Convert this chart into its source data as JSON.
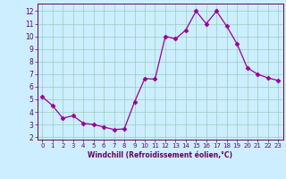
{
  "x": [
    0,
    1,
    2,
    3,
    4,
    5,
    6,
    7,
    8,
    9,
    10,
    11,
    12,
    13,
    14,
    15,
    16,
    17,
    18,
    19,
    20,
    21,
    22,
    23
  ],
  "y": [
    5.2,
    4.5,
    3.5,
    3.7,
    3.1,
    3.0,
    2.8,
    2.6,
    2.65,
    4.8,
    6.65,
    6.6,
    10.0,
    9.8,
    10.5,
    12.0,
    11.0,
    12.0,
    10.8,
    9.4,
    7.5,
    7.0,
    6.7,
    6.5
  ],
  "line_color": "#990099",
  "marker": "D",
  "marker_size": 2.5,
  "bg_color": "#cceeff",
  "grid_color": "#99ccbb",
  "xlabel": "Windchill (Refroidissement éolien,°C)",
  "xlabel_color": "#660066",
  "tick_color": "#660066",
  "xlim": [
    -0.5,
    23.5
  ],
  "ylim": [
    1.8,
    12.6
  ],
  "yticks": [
    2,
    3,
    4,
    5,
    6,
    7,
    8,
    9,
    10,
    11,
    12
  ],
  "xticks": [
    0,
    1,
    2,
    3,
    4,
    5,
    6,
    7,
    8,
    9,
    10,
    11,
    12,
    13,
    14,
    15,
    16,
    17,
    18,
    19,
    20,
    21,
    22,
    23
  ]
}
